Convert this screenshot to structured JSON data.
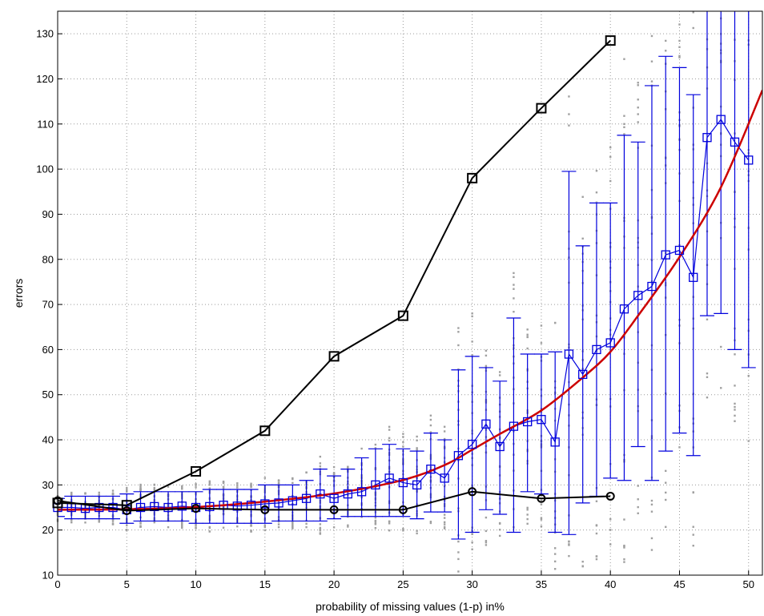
{
  "chart_data": {
    "type": "line",
    "title": "",
    "xlabel": "probability of missing values (1-p) in%",
    "ylabel": "errors",
    "xlim": [
      0,
      51
    ],
    "ylim": [
      10,
      135
    ],
    "xticks": [
      0,
      5,
      10,
      15,
      20,
      25,
      30,
      35,
      40,
      45,
      50
    ],
    "yticks": [
      10,
      20,
      30,
      40,
      50,
      60,
      70,
      80,
      90,
      100,
      110,
      120,
      130
    ],
    "grid": true,
    "legend": "none",
    "colors": {
      "black": "#000000",
      "blue": "#0000dd",
      "red": "#cc0000",
      "scatter": "#a0a0a0"
    },
    "series": [
      {
        "marker": "square",
        "color": "#000000",
        "x": [
          0,
          5,
          10,
          15,
          20,
          25,
          30,
          35,
          40
        ],
        "y": [
          26,
          25.5,
          33,
          42,
          58.5,
          67.5,
          98,
          113.5,
          128.5
        ]
      },
      {
        "marker": "circle",
        "color": "#000000",
        "x": [
          0,
          5,
          10,
          15,
          20,
          25,
          30,
          35,
          40
        ],
        "y": [
          26.5,
          24.3,
          24.8,
          24.5,
          24.5,
          24.5,
          28.5,
          27,
          27.5
        ]
      },
      {
        "marker": "square",
        "color": "#0000dd",
        "errorbars": true,
        "x": [
          0,
          1,
          2,
          3,
          4,
          5,
          6,
          7,
          8,
          9,
          10,
          11,
          12,
          13,
          14,
          15,
          16,
          17,
          18,
          19,
          20,
          21,
          22,
          23,
          24,
          25,
          26,
          27,
          28,
          29,
          30,
          31,
          32,
          33,
          34,
          35,
          36,
          37,
          38,
          39,
          40,
          41,
          42,
          43,
          44,
          45,
          46,
          47,
          48,
          49,
          50
        ],
        "y": [
          25,
          25,
          24.8,
          25,
          25,
          24.5,
          25,
          25.2,
          25,
          25.3,
          25,
          25.2,
          25.5,
          25.3,
          25.5,
          25.8,
          26,
          26.5,
          27,
          28,
          27,
          28,
          28.5,
          30,
          31.5,
          30.5,
          30,
          33.5,
          31.5,
          36.5,
          39,
          43.5,
          38.5,
          43,
          44,
          44.5,
          39.5,
          59,
          54.5,
          60,
          61.5,
          69,
          72,
          74,
          81,
          82,
          76,
          107,
          111,
          106,
          102
        ],
        "err_low": [
          23,
          22.5,
          22.5,
          22.5,
          22.5,
          21.5,
          22,
          22,
          22,
          22,
          21.5,
          21.5,
          21.5,
          21.5,
          21.5,
          21.5,
          22,
          22,
          22,
          22,
          22.5,
          23,
          23,
          23,
          23,
          23,
          22.5,
          24,
          24,
          18,
          19.5,
          24.5,
          23.5,
          19.5,
          28.5,
          28,
          19.5,
          19,
          26,
          27.5,
          31.5,
          31,
          38.5,
          31,
          37.5,
          41.5,
          36.5,
          67.5,
          68,
          60,
          56
        ],
        "err_high": [
          27,
          27.5,
          27.5,
          27.5,
          27.5,
          28,
          28.5,
          28.5,
          28.5,
          28.5,
          28.5,
          29,
          29,
          29,
          29,
          30,
          30,
          30,
          31,
          33.5,
          32,
          33.5,
          36,
          38,
          39,
          38,
          37.5,
          41.5,
          40,
          55.5,
          58.5,
          56,
          53,
          67,
          59,
          59,
          59.5,
          99.5,
          83,
          92.5,
          92.5,
          107.5,
          106,
          118.5,
          125,
          122.5,
          116.5,
          140,
          140,
          140,
          140
        ]
      },
      {
        "marker": "none",
        "color": "#cc0000",
        "smooth": true,
        "x": [
          0,
          5,
          10,
          15,
          20,
          25,
          28,
          30,
          32,
          35,
          38,
          40,
          42,
          45,
          48,
          51
        ],
        "y": [
          24.5,
          24.6,
          25.1,
          26.3,
          28.1,
          31.1,
          34.4,
          37.8,
          41.3,
          46.5,
          53.8,
          59.5,
          67.5,
          80.5,
          96,
          117.5
        ]
      }
    ]
  }
}
